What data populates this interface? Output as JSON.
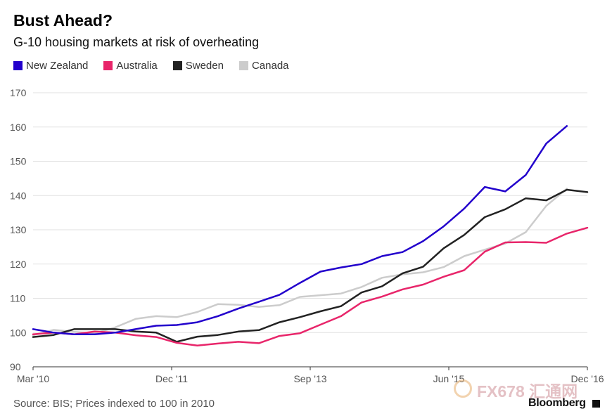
{
  "header": {
    "title": "Bust Ahead?",
    "subtitle": "G-10 housing markets at risk of overheating"
  },
  "footer": {
    "source": "Source: BIS; Prices indexed to 100 in 2010",
    "brand": "Bloomberg",
    "watermark": "FX678 汇通网"
  },
  "chart_data": {
    "type": "line",
    "title": "Bust Ahead?",
    "subtitle": "G-10 housing markets at risk of overheating",
    "xlabel": "",
    "ylabel": "",
    "x_ticks": [
      "Mar '10",
      "Dec '11",
      "Sep '13",
      "Jun '15",
      "Dec '16"
    ],
    "y_ticks": [
      90,
      100,
      110,
      120,
      130,
      140,
      150,
      160,
      170
    ],
    "ylim": [
      90,
      170
    ],
    "xlim": [
      0,
      27
    ],
    "grid": true,
    "legend_position": "top-left",
    "series": [
      {
        "name": "New Zealand",
        "color": "#2200cc",
        "values": [
          101,
          100,
          99.5,
          99.5,
          100,
          101,
          102,
          102.2,
          103,
          104.8,
          107,
          109,
          111,
          114.5,
          117.8,
          119,
          120,
          122.3,
          123.5,
          126.7,
          131,
          136.2,
          142.5,
          141.2,
          146,
          155.2,
          160.3
        ]
      },
      {
        "name": "Australia",
        "color": "#e8256a",
        "values": [
          99.5,
          100,
          99.5,
          100.3,
          100,
          99.2,
          98.7,
          97,
          96.2,
          96.8,
          97.3,
          96.9,
          99,
          99.8,
          102.3,
          104.8,
          108.8,
          110.5,
          112.6,
          114,
          116.3,
          118.2,
          123.6,
          126.3,
          126.4,
          126.2,
          128.9,
          130.6
        ]
      },
      {
        "name": "Sweden",
        "color": "#222222",
        "values": [
          98.7,
          99.3,
          101,
          101,
          101,
          100.3,
          100,
          97.3,
          98.8,
          99.3,
          100.3,
          100.7,
          103,
          104.5,
          106.2,
          107.7,
          111.7,
          113.5,
          117.3,
          119.2,
          124.6,
          128.5,
          133.7,
          136,
          139.2,
          138.6,
          141.7,
          141
        ]
      },
      {
        "name": "Canada",
        "color": "#cccccc",
        "values": [
          99.2,
          100.8,
          100.2,
          99.8,
          101.5,
          104,
          104.8,
          104.5,
          106,
          108.3,
          108.1,
          107.5,
          108,
          110.4,
          110.9,
          111.4,
          113.3,
          116,
          117,
          117.6,
          119.1,
          122.3,
          124.2,
          126,
          129.3,
          137,
          142
        ]
      }
    ]
  }
}
